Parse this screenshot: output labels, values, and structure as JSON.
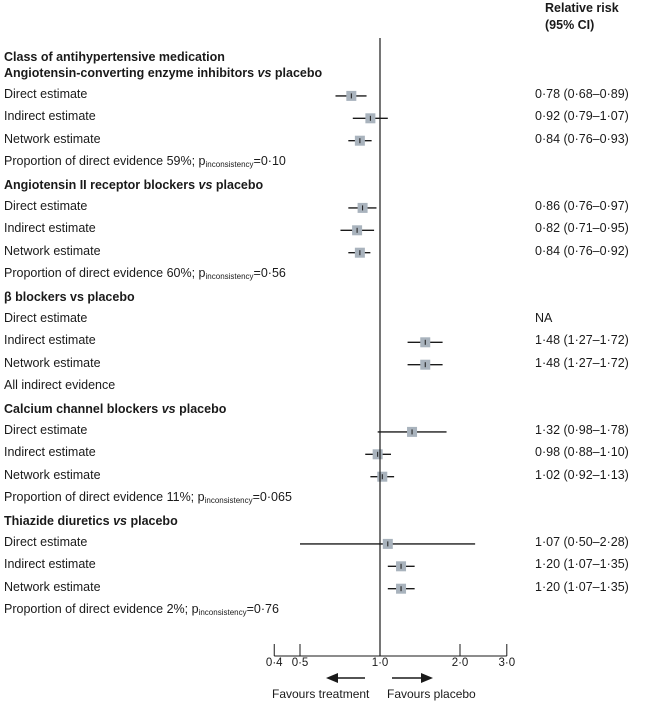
{
  "header": {
    "line1": "Relative risk",
    "line2": "(95% CI)"
  },
  "section_title": "Class of antihypertensive medication",
  "chart_data": {
    "type": "forest",
    "xscale": "log",
    "xlim": [
      0.4,
      3.0
    ],
    "ticks": [
      {
        "v": 0.4,
        "label": "0·4"
      },
      {
        "v": 0.5,
        "label": "0·5"
      },
      {
        "v": 1.0,
        "label": "1·0"
      },
      {
        "v": 2.0,
        "label": "2·0"
      },
      {
        "v": 3.0,
        "label": "3·0"
      }
    ],
    "reference": 1.0,
    "groups": [
      {
        "title": "Angiotensin-converting enzyme inhibitors",
        "title_vs": "vs",
        "title_tail": "placebo",
        "rows": [
          {
            "label": "Direct estimate",
            "est": 0.78,
            "lo": 0.68,
            "hi": 0.89,
            "ci": "0·78 (0·68–0·89)"
          },
          {
            "label": "Indirect estimate",
            "est": 0.92,
            "lo": 0.79,
            "hi": 1.07,
            "ci": "0·92 (0·79–1·07)"
          },
          {
            "label": "Network estimate",
            "est": 0.84,
            "lo": 0.76,
            "hi": 0.93,
            "ci": "0·84 (0·76–0·93)"
          }
        ],
        "footer": {
          "pre": "Proportion of direct evidence 59%; p",
          "sub": "inconsistency",
          "post": "=0·10"
        }
      },
      {
        "title": "Angiotensin II receptor blockers",
        "title_vs": "vs",
        "title_tail": "placebo",
        "rows": [
          {
            "label": "Direct estimate",
            "est": 0.86,
            "lo": 0.76,
            "hi": 0.97,
            "ci": "0·86 (0·76–0·97)"
          },
          {
            "label": "Indirect estimate",
            "est": 0.82,
            "lo": 0.71,
            "hi": 0.95,
            "ci": "0·82 (0·71–0·95)"
          },
          {
            "label": "Network estimate",
            "est": 0.84,
            "lo": 0.76,
            "hi": 0.92,
            "ci": "0·84 (0·76–0·92)"
          }
        ],
        "footer": {
          "pre": "Proportion of direct evidence 60%; p",
          "sub": "inconsistency",
          "post": "=0·56"
        }
      },
      {
        "title": "β blockers vs placebo",
        "title_vs": "",
        "title_tail": "",
        "rows": [
          {
            "label": "Direct estimate",
            "est": null,
            "lo": null,
            "hi": null,
            "ci": "NA"
          },
          {
            "label": "Indirect estimate",
            "est": 1.48,
            "lo": 1.27,
            "hi": 1.72,
            "ci": "1·48 (1·27–1·72)"
          },
          {
            "label": "Network estimate",
            "est": 1.48,
            "lo": 1.27,
            "hi": 1.72,
            "ci": "1·48 (1·27–1·72)"
          }
        ],
        "footer": {
          "pre": "All indirect evidence",
          "sub": "",
          "post": ""
        }
      },
      {
        "title": "Calcium channel blockers",
        "title_vs": "vs",
        "title_tail": "placebo",
        "rows": [
          {
            "label": "Direct estimate",
            "est": 1.32,
            "lo": 0.98,
            "hi": 1.78,
            "ci": "1·32 (0·98–1·78)"
          },
          {
            "label": "Indirect estimate",
            "est": 0.98,
            "lo": 0.88,
            "hi": 1.1,
            "ci": "0·98 (0·88–1·10)"
          },
          {
            "label": "Network estimate",
            "est": 1.02,
            "lo": 0.92,
            "hi": 1.13,
            "ci": "1·02 (0·92–1·13)"
          }
        ],
        "footer": {
          "pre": "Proportion of direct evidence 11%; p",
          "sub": "inconsistency",
          "post": "=0·065"
        }
      },
      {
        "title": "Thiazide diuretics",
        "title_vs": "vs",
        "title_tail": "placebo",
        "rows": [
          {
            "label": "Direct estimate",
            "est": 1.07,
            "lo": 0.5,
            "hi": 2.28,
            "ci": "1·07 (0·50–2·28)"
          },
          {
            "label": "Indirect estimate",
            "est": 1.2,
            "lo": 1.07,
            "hi": 1.35,
            "ci": "1·20 (1·07–1·35)"
          },
          {
            "label": "Network estimate",
            "est": 1.2,
            "lo": 1.07,
            "hi": 1.35,
            "ci": "1·20 (1·07–1·35)"
          }
        ],
        "footer": {
          "pre": "Proportion of direct evidence 2%; p",
          "sub": "inconsistency",
          "post": "=0·76"
        }
      }
    ],
    "favours_left": "Favours treatment",
    "favours_right": "Favours placebo",
    "colors": {
      "box": "#a9b3bd",
      "line": "#1a1a1a"
    }
  }
}
